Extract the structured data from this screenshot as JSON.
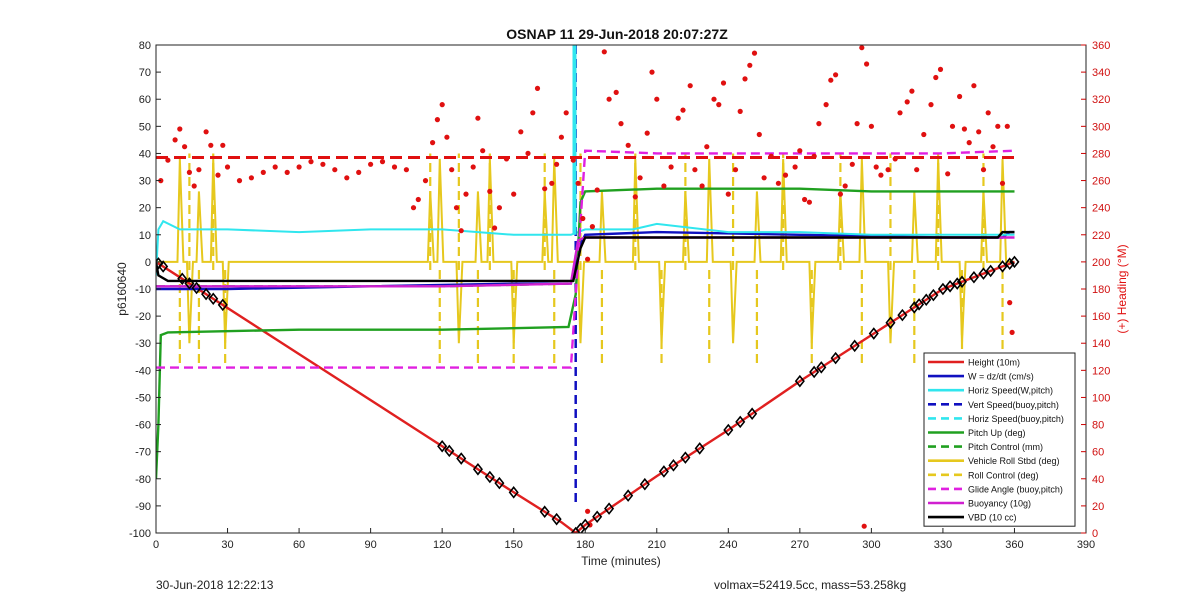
{
  "chart_data": {
    "type": "line",
    "title": "OSNAP 11 29-Jun-2018 20:07:27Z",
    "xlabel": "Time (minutes)",
    "ylabel": "p6160640",
    "y2label": "(+) Heading (°M)",
    "xlim": [
      0,
      390
    ],
    "ylim": [
      -100,
      80
    ],
    "y2lim": [
      0,
      360
    ],
    "xticks": [
      "0",
      "30",
      "60",
      "90",
      "120",
      "150",
      "180",
      "210",
      "240",
      "270",
      "300",
      "330",
      "360",
      "390"
    ],
    "yticks": [
      "80",
      "70",
      "60",
      "50",
      "40",
      "30",
      "20",
      "10",
      "0",
      "-10",
      "-20",
      "-30",
      "-40",
      "-50",
      "-60",
      "-70",
      "-80",
      "-90",
      "-100"
    ],
    "y2ticks": [
      "360",
      "340",
      "320",
      "300",
      "280",
      "260",
      "240",
      "220",
      "200",
      "180",
      "160",
      "140",
      "120",
      "100",
      "80",
      "60",
      "40",
      "20",
      "0"
    ],
    "grid": false,
    "legend_position": "bottom-right",
    "colors": {
      "height": "#e02020",
      "w": "#1010c0",
      "horiz": "#30e6ee",
      "vert": "#1010c0",
      "pitch": "#20a020",
      "roll": "#e6c81e",
      "glide": "#e020e0",
      "buoy": "#d020d0",
      "vbd": "#000000",
      "heading": "#e01010"
    },
    "legend": [
      {
        "key": "height",
        "label": "Height (10m)",
        "dash": false
      },
      {
        "key": "w",
        "label": "W = dz/dt (cm/s)",
        "dash": false
      },
      {
        "key": "horiz",
        "label": "Horiz Speed(W,pitch)",
        "dash": false
      },
      {
        "key": "vert",
        "label": "Vert Speed(buoy,pitch)",
        "dash": true
      },
      {
        "key": "horiz",
        "label": "Horiz Speed(buoy,pitch)",
        "dash": true
      },
      {
        "key": "pitch",
        "label": "Pitch Up (deg)",
        "dash": false
      },
      {
        "key": "pitch",
        "label": "Pitch Control (mm)",
        "dash": true
      },
      {
        "key": "roll",
        "label": "Vehicle Roll Stbd (deg)",
        "dash": false
      },
      {
        "key": "roll",
        "label": "Roll Control (deg)",
        "dash": true
      },
      {
        "key": "glide",
        "label": "Glide Angle (buoy,pitch)",
        "dash": true
      },
      {
        "key": "buoy",
        "label": "Buoyancy (10g)",
        "dash": false
      },
      {
        "key": "vbd",
        "label": "VBD (10 cc)",
        "dash": false
      }
    ],
    "series": [
      {
        "key": "height",
        "x": [
          0,
          60,
          120,
          150,
          170,
          176,
          180,
          210,
          240,
          270,
          300,
          330,
          360
        ],
        "y": [
          0,
          -34,
          -68,
          -85,
          -96,
          -100,
          -97,
          -79,
          -62,
          -44,
          -27,
          -10,
          0
        ]
      },
      {
        "key": "w",
        "x": [
          0,
          30,
          90,
          150,
          174,
          177,
          180,
          210,
          270,
          330,
          355,
          358,
          360
        ],
        "y": [
          -10,
          -10,
          -9,
          -8,
          -8,
          5,
          10,
          11,
          10,
          9,
          9,
          11,
          11
        ]
      },
      {
        "key": "horiz",
        "x": [
          0,
          1,
          3,
          10,
          30,
          60,
          90,
          120,
          150,
          174,
          180,
          200,
          210,
          240,
          270,
          300,
          330,
          358,
          360
        ],
        "y": [
          -5,
          12,
          15,
          12,
          12,
          11,
          12,
          12,
          10,
          10,
          12,
          12,
          14,
          11,
          11,
          10,
          10,
          10,
          10
        ]
      },
      {
        "key": "vert",
        "dash": true,
        "x": [
          176,
          176
        ],
        "y": [
          80,
          -90
        ]
      },
      {
        "key": "pitch",
        "x": [
          0,
          1,
          2,
          5,
          60,
          120,
          173,
          176,
          178,
          180,
          210,
          240,
          270,
          300,
          330,
          358,
          360
        ],
        "y": [
          -80,
          -60,
          -27,
          -26,
          -25,
          -25,
          -24,
          -12,
          22,
          26,
          27,
          27,
          27,
          26,
          26,
          26,
          26
        ]
      },
      {
        "key": "pitch",
        "dash": true,
        "x": [
          0,
          60,
          120,
          173
        ],
        "y": [
          -9,
          -9,
          -9,
          -8
        ]
      },
      {
        "key": "glide",
        "dash": true,
        "x": [
          0,
          60,
          120,
          174,
          180,
          210,
          240,
          270,
          300,
          330,
          360
        ],
        "y": [
          -39,
          -39,
          -39,
          -39,
          41,
          40,
          40,
          40,
          40,
          40,
          41
        ]
      },
      {
        "key": "buoy",
        "x": [
          0,
          60,
          120,
          174,
          177,
          180,
          270,
          360
        ],
        "y": [
          -9,
          -9,
          -9,
          -8,
          8,
          9,
          9,
          9
        ]
      },
      {
        "key": "vbd",
        "x": [
          0,
          1,
          5,
          170,
          175,
          178,
          180,
          353,
          355,
          360
        ],
        "y": [
          0,
          -5,
          -7,
          -7,
          -7,
          5,
          9,
          9,
          11,
          11
        ]
      }
    ],
    "roll_spike_times": [
      10,
      14,
      18,
      24,
      29,
      115,
      119,
      127,
      135,
      140,
      150,
      163,
      167,
      178,
      187,
      201,
      212,
      222,
      232,
      242,
      252,
      263,
      275,
      287,
      296,
      308,
      318,
      328,
      338,
      347,
      355
    ],
    "diamond_markers_x": [
      1,
      3,
      11,
      14,
      17,
      21,
      24,
      28,
      120,
      123,
      128,
      135,
      140,
      144,
      150,
      163,
      168,
      176,
      178,
      180,
      185,
      190,
      198,
      205,
      213,
      217,
      222,
      228,
      240,
      245,
      250,
      270,
      276,
      279,
      285,
      293,
      301,
      308,
      313,
      318,
      320,
      323,
      326,
      330,
      333,
      336,
      338,
      343,
      347,
      350,
      355,
      358,
      360
    ],
    "heading_points": [
      [
        2,
        260
      ],
      [
        5,
        275
      ],
      [
        8,
        290
      ],
      [
        10,
        298
      ],
      [
        12,
        285
      ],
      [
        14,
        266
      ],
      [
        16,
        256
      ],
      [
        18,
        268
      ],
      [
        21,
        296
      ],
      [
        23,
        286
      ],
      [
        26,
        264
      ],
      [
        28,
        286
      ],
      [
        30,
        270
      ],
      [
        35,
        260
      ],
      [
        40,
        262
      ],
      [
        45,
        266
      ],
      [
        50,
        270
      ],
      [
        55,
        266
      ],
      [
        60,
        270
      ],
      [
        65,
        274
      ],
      [
        70,
        272
      ],
      [
        75,
        268
      ],
      [
        80,
        262
      ],
      [
        85,
        266
      ],
      [
        90,
        272
      ],
      [
        95,
        274
      ],
      [
        100,
        270
      ],
      [
        105,
        268
      ],
      [
        108,
        240
      ],
      [
        110,
        246
      ],
      [
        113,
        260
      ],
      [
        116,
        288
      ],
      [
        118,
        305
      ],
      [
        120,
        316
      ],
      [
        122,
        292
      ],
      [
        124,
        268
      ],
      [
        126,
        240
      ],
      [
        128,
        223
      ],
      [
        130,
        250
      ],
      [
        133,
        270
      ],
      [
        135,
        306
      ],
      [
        137,
        282
      ],
      [
        140,
        252
      ],
      [
        142,
        225
      ],
      [
        144,
        240
      ],
      [
        147,
        276
      ],
      [
        150,
        250
      ],
      [
        153,
        296
      ],
      [
        156,
        280
      ],
      [
        158,
        310
      ],
      [
        160,
        328
      ],
      [
        163,
        254
      ],
      [
        166,
        258
      ],
      [
        168,
        272
      ],
      [
        170,
        292
      ],
      [
        172,
        310
      ],
      [
        175,
        275
      ],
      [
        177,
        258
      ],
      [
        179,
        232
      ],
      [
        181,
        202
      ],
      [
        183,
        226
      ],
      [
        185,
        253
      ],
      [
        188,
        355
      ],
      [
        190,
        320
      ],
      [
        193,
        325
      ],
      [
        195,
        302
      ],
      [
        198,
        286
      ],
      [
        201,
        248
      ],
      [
        203,
        262
      ],
      [
        206,
        295
      ],
      [
        208,
        340
      ],
      [
        210,
        320
      ],
      [
        213,
        256
      ],
      [
        216,
        270
      ],
      [
        219,
        306
      ],
      [
        221,
        312
      ],
      [
        224,
        330
      ],
      [
        226,
        268
      ],
      [
        229,
        256
      ],
      [
        231,
        285
      ],
      [
        234,
        320
      ],
      [
        236,
        316
      ],
      [
        238,
        332
      ],
      [
        240,
        250
      ],
      [
        243,
        268
      ],
      [
        245,
        311
      ],
      [
        247,
        335
      ],
      [
        249,
        345
      ],
      [
        251,
        354
      ],
      [
        253,
        294
      ],
      [
        255,
        262
      ],
      [
        258,
        278
      ],
      [
        261,
        258
      ],
      [
        264,
        264
      ],
      [
        268,
        270
      ],
      [
        270,
        282
      ],
      [
        272,
        246
      ],
      [
        274,
        244
      ],
      [
        276,
        278
      ],
      [
        278,
        302
      ],
      [
        281,
        316
      ],
      [
        283,
        334
      ],
      [
        285,
        338
      ],
      [
        287,
        250
      ],
      [
        289,
        256
      ],
      [
        292,
        272
      ],
      [
        294,
        302
      ],
      [
        296,
        358
      ],
      [
        298,
        346
      ],
      [
        300,
        300
      ],
      [
        302,
        270
      ],
      [
        304,
        264
      ],
      [
        307,
        268
      ],
      [
        310,
        276
      ],
      [
        312,
        310
      ],
      [
        315,
        318
      ],
      [
        317,
        326
      ],
      [
        319,
        268
      ],
      [
        322,
        294
      ],
      [
        325,
        316
      ],
      [
        327,
        336
      ],
      [
        329,
        342
      ],
      [
        332,
        265
      ],
      [
        334,
        300
      ],
      [
        337,
        322
      ],
      [
        339,
        298
      ],
      [
        341,
        288
      ],
      [
        343,
        330
      ],
      [
        345,
        296
      ],
      [
        347,
        268
      ],
      [
        349,
        310
      ],
      [
        351,
        285
      ],
      [
        353,
        300
      ],
      [
        355,
        258
      ],
      [
        357,
        300
      ],
      [
        358,
        170
      ],
      [
        359,
        148
      ],
      [
        181,
        16
      ],
      [
        182,
        6
      ],
      [
        297,
        5
      ]
    ]
  },
  "footer": {
    "timestamp": "30-Jun-2018 12:22:13",
    "stats": "volmax=52419.5cc, mass=53.258kg"
  }
}
